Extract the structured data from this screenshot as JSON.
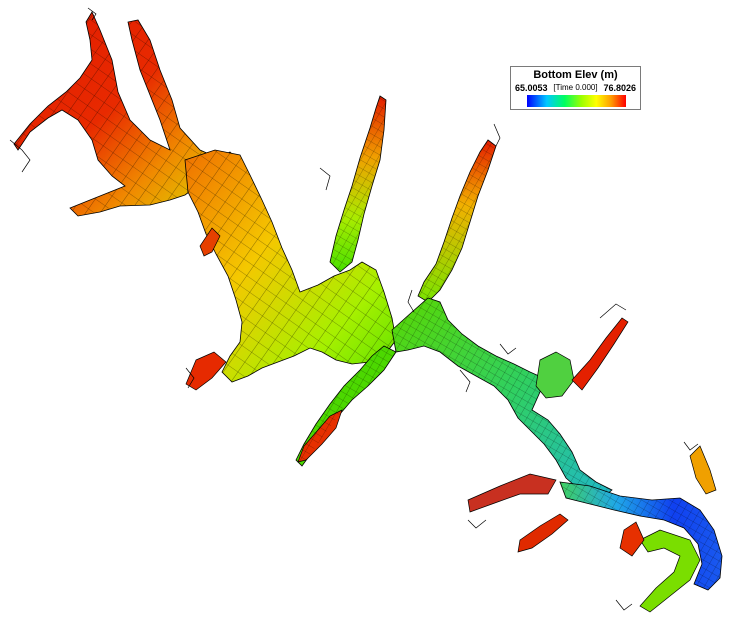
{
  "legend": {
    "title": "Bottom Elev (m)",
    "min_label": "65.0053",
    "max_label": "76.8026",
    "time_label": "[Time 0.000]",
    "min_value": 65.0053,
    "max_value": 76.8026,
    "colormap": [
      "#0000ff",
      "#00c8ff",
      "#00ff60",
      "#9cff00",
      "#ffff00",
      "#ff9c00",
      "#ff0000"
    ]
  },
  "map": {
    "background": "#ffffff",
    "outline_color": "#000000",
    "mesh_line_color": "#000000"
  }
}
